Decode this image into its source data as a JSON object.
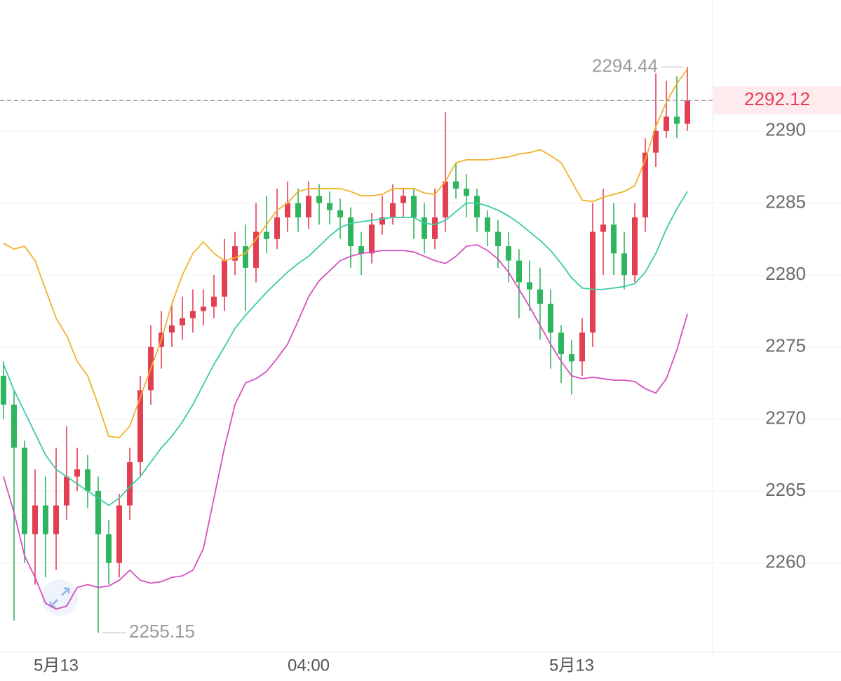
{
  "chart_data": {
    "type": "candlestick",
    "categories": [
      null,
      null,
      null,
      null,
      null,
      "5月13",
      null,
      null,
      null,
      null,
      null,
      null,
      null,
      null,
      null,
      null,
      null,
      null,
      null,
      null,
      null,
      null,
      null,
      null,
      null,
      null,
      null,
      null,
      null,
      "04:00",
      null,
      null,
      null,
      null,
      null,
      null,
      null,
      null,
      null,
      null,
      null,
      null,
      null,
      null,
      null,
      null,
      null,
      null,
      null,
      null,
      null,
      null,
      null,
      null,
      "5月13",
      null,
      null,
      null,
      null,
      null,
      null,
      null,
      null,
      null,
      null,
      null
    ],
    "open": [
      2273,
      2271,
      2268,
      2262,
      2264,
      2262,
      2264,
      2266,
      2266.5,
      2265,
      2262,
      2260,
      2264,
      2267,
      2272,
      2275,
      2276,
      2276.5,
      2277,
      2277.5,
      2277.8,
      2278.5,
      2281,
      2282,
      2280.5,
      2283,
      2282.5,
      2284,
      2285,
      2284,
      2285.5,
      2285,
      2284.5,
      2284,
      2282,
      2281.5,
      2283.5,
      2284,
      2285,
      2285.5,
      2284,
      2282.5,
      2284,
      2286.5,
      2286,
      2285.5,
      2284,
      2283,
      2282,
      2281,
      2279.5,
      2279,
      2278,
      2276,
      2274.5,
      2274,
      2276,
      2283,
      2283.5,
      2281.5,
      2280,
      2284,
      2288.5,
      2290,
      2291,
      2290.5
    ],
    "high": [
      2274,
      2272,
      2268.5,
      2266.5,
      2266,
      2268,
      2269.5,
      2268,
      2267.5,
      2266,
      2263,
      2264.8,
      2268,
      2273,
      2276.5,
      2277.5,
      2278,
      2278.5,
      2279,
      2279,
      2280,
      2282.5,
      2283,
      2283.5,
      2285,
      2285.5,
      2286,
      2286.5,
      2286,
      2286.5,
      2286.3,
      2285.8,
      2285.3,
      2284.7,
      2283,
      2284.3,
      2285.5,
      2286.3,
      2286,
      2286,
      2285,
      2286,
      2291.3,
      2287.8,
      2287,
      2286,
      2284.5,
      2283.8,
      2283,
      2281.8,
      2281,
      2280.5,
      2279,
      2276.5,
      2275.5,
      2277,
      2285,
      2286,
      2285,
      2283,
      2285,
      2289.5,
      2294,
      2293.5,
      2293.8,
      2294.44
    ],
    "low": [
      2270,
      2256,
      2260,
      2258.5,
      2259,
      2259.5,
      2263,
      2265,
      2263.8,
      2255.15,
      2258.5,
      2259,
      2263,
      2266,
      2271,
      2273.5,
      2275,
      2275.5,
      2276,
      2276.5,
      2277,
      2277.5,
      2280,
      2277.5,
      2279.5,
      2281.5,
      2281.8,
      2283,
      2283,
      2283.2,
      2283.5,
      2283.5,
      2282.5,
      2280.5,
      2280,
      2280.8,
      2282.8,
      2283.5,
      2284,
      2282.5,
      2281.5,
      2281.8,
      2283,
      2285.3,
      2284,
      2283,
      2282,
      2280.5,
      2279.5,
      2277,
      2277.5,
      2275.5,
      2273.5,
      2272.5,
      2271.7,
      2273,
      2275,
      2280,
      2280,
      2279,
      2279.5,
      2283,
      2287.5,
      2289.5,
      2289.5,
      2290
    ],
    "close": [
      2271,
      2268,
      2262,
      2264,
      2262,
      2264,
      2266,
      2266.5,
      2265,
      2262,
      2260,
      2264,
      2267,
      2272,
      2275,
      2276,
      2276.5,
      2277,
      2277.5,
      2277.8,
      2278.5,
      2281,
      2282,
      2280.5,
      2283,
      2282.5,
      2284,
      2285,
      2284,
      2285.5,
      2285,
      2284.5,
      2284,
      2282,
      2281.5,
      2283.5,
      2284,
      2285,
      2285.5,
      2284,
      2282.5,
      2284,
      2286.5,
      2286,
      2285.5,
      2284,
      2283,
      2282,
      2281,
      2279.5,
      2279,
      2278,
      2276,
      2274.5,
      2274,
      2276,
      2283,
      2283.5,
      2281.5,
      2280,
      2284,
      2288.5,
      2290,
      2291,
      2290.5,
      2292.12
    ],
    "up_color": "#e23f52",
    "down_color": "#2fb55e",
    "lines": [
      {
        "color": "#f0b22a",
        "values": [
          2282.2,
          2281.8,
          2282,
          2281,
          2279,
          2277,
          2275.8,
          2274,
          2273,
          2271,
          2268.8,
          2268.7,
          2269.5,
          2271.5,
          2273.5,
          2275.5,
          2278,
          2280,
          2281.5,
          2282.3,
          2281.5,
          2281,
          2281.2,
          2281.5,
          2282.5,
          2283.5,
          2284.5,
          2285,
          2285.8,
          2286,
          2286,
          2286,
          2286,
          2285.8,
          2285.5,
          2285.5,
          2285.6,
          2286,
          2286,
          2286,
          2285.7,
          2285.6,
          2286.5,
          2287.8,
          2288,
          2288,
          2288,
          2288.1,
          2288.2,
          2288.4,
          2288.5,
          2288.7,
          2288.3,
          2287.8,
          2286.5,
          2285.2,
          2285.1,
          2285.4,
          2285.6,
          2285.8,
          2286.2,
          2288,
          2290.3,
          2292,
          2293.3,
          2294.3
        ]
      },
      {
        "color": "#3ccaa6",
        "values": [
          2273.8,
          2272,
          2270.5,
          2269,
          2267.5,
          2266.5,
          2266,
          2265.5,
          2265,
          2264.5,
          2264,
          2264.5,
          2265.3,
          2266,
          2267,
          2268,
          2268.8,
          2269.8,
          2271,
          2272.4,
          2273.8,
          2275,
          2276.3,
          2277.2,
          2278,
          2278.8,
          2279.5,
          2280.2,
          2280.8,
          2281.3,
          2282,
          2282.7,
          2283.3,
          2283.6,
          2283.7,
          2283.8,
          2283.9,
          2284,
          2284,
          2284,
          2283.6,
          2283.5,
          2283.8,
          2284.4,
          2285,
          2285,
          2284.8,
          2284.5,
          2284.1,
          2283.6,
          2283,
          2282.4,
          2281.7,
          2280.8,
          2279.8,
          2279.1,
          2279,
          2279,
          2279.1,
          2279.2,
          2279.4,
          2280.2,
          2281.5,
          2283.2,
          2284.6,
          2285.8
        ]
      },
      {
        "color": "#d64fbf",
        "values": [
          2266,
          2263.5,
          2260.5,
          2259,
          2257.2,
          2256.8,
          2257,
          2258.3,
          2258.5,
          2258.3,
          2258.4,
          2258.8,
          2259.5,
          2258.8,
          2258.6,
          2258.7,
          2259,
          2259.1,
          2259.5,
          2261,
          2264.5,
          2268,
          2271,
          2272.5,
          2272.8,
          2273.3,
          2274.2,
          2275.2,
          2276.8,
          2278.5,
          2279.6,
          2280.3,
          2281,
          2281.3,
          2281.5,
          2281.6,
          2281.7,
          2281.7,
          2281.7,
          2281.6,
          2281.3,
          2281,
          2280.8,
          2281.3,
          2282,
          2282.1,
          2281.7,
          2281.1,
          2280.2,
          2279,
          2277.8,
          2276.5,
          2275.2,
          2274,
          2273,
          2272.8,
          2272.9,
          2272.8,
          2272.7,
          2272.7,
          2272.6,
          2272.1,
          2271.8,
          2272.8,
          2274.8,
          2277.3
        ]
      }
    ],
    "ylim": [
      2253.8,
      2299.1
    ],
    "yticks": [
      2260,
      2265,
      2270,
      2275,
      2280,
      2285,
      2290
    ],
    "grid": true
  }
}
